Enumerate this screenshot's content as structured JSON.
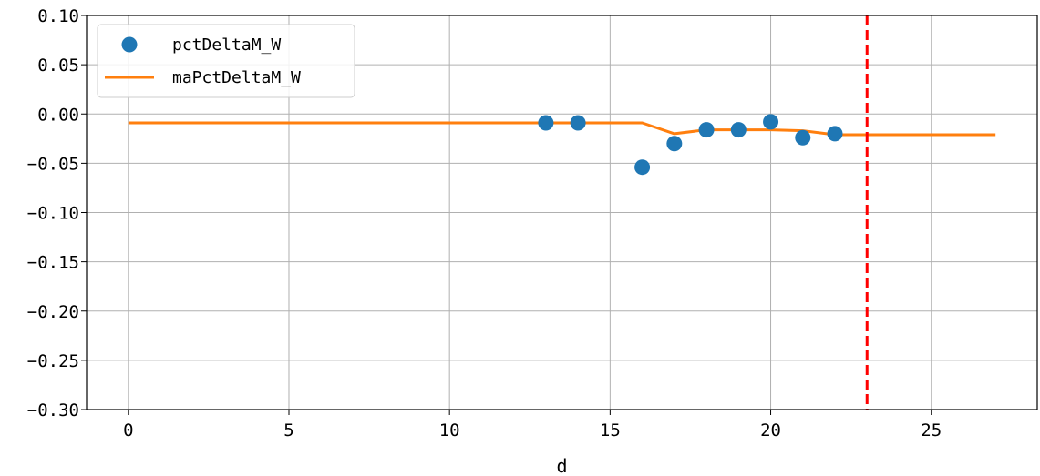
{
  "chart_data": {
    "type": "scatter",
    "xlabel": "d",
    "ylabel": "",
    "xlim": [
      -1.3,
      28.3
    ],
    "ylim": [
      -0.3,
      0.1
    ],
    "xticks": [
      0,
      5,
      10,
      15,
      20,
      25
    ],
    "xtick_labels": [
      "0",
      "5",
      "10",
      "15",
      "20",
      "25"
    ],
    "yticks": [
      0.1,
      0.05,
      0.0,
      -0.05,
      -0.1,
      -0.15,
      -0.2,
      -0.25,
      -0.3
    ],
    "ytick_labels": [
      "0.10",
      "0.05",
      "0.00",
      "−0.05",
      "−0.10",
      "−0.15",
      "−0.20",
      "−0.25",
      "−0.30"
    ],
    "grid": true,
    "legend_position": "top-left",
    "series": [
      {
        "name": "pctDeltaM_W",
        "kind": "scatter",
        "color": "#1f77b4",
        "x": [
          13,
          14,
          16,
          17,
          18,
          19,
          20,
          21,
          22
        ],
        "y": [
          -0.009,
          -0.009,
          -0.054,
          -0.03,
          -0.016,
          -0.016,
          -0.008,
          -0.024,
          -0.02
        ]
      },
      {
        "name": "maPctDeltaM_W",
        "kind": "line",
        "color": "#ff7f0e",
        "x": [
          0,
          13,
          14,
          15,
          16,
          17,
          18,
          19,
          20,
          21,
          22,
          23,
          24,
          25,
          26,
          27
        ],
        "y": [
          -0.009,
          -0.009,
          -0.009,
          -0.009,
          -0.009,
          -0.02,
          -0.016,
          -0.016,
          -0.016,
          -0.017,
          -0.021,
          -0.021,
          -0.021,
          -0.021,
          -0.021,
          -0.021
        ]
      }
    ],
    "vlines": [
      {
        "x": 23,
        "color": "#ff0000",
        "style": "dashed"
      }
    ]
  }
}
